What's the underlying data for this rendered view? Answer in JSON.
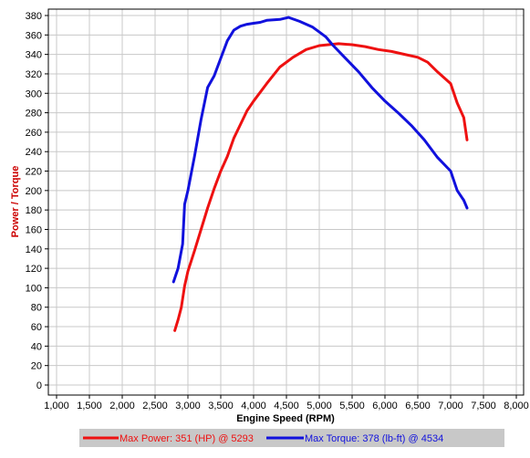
{
  "colors": {
    "power": "#ee1111",
    "torque": "#1111dd",
    "grid": "#c8c8c8",
    "axis": "#000000",
    "legend_bg": "#c8c8c8",
    "ylabel": "#cc0000"
  },
  "chart_data": {
    "type": "line",
    "title": "",
    "xlabel": "Engine Speed (RPM)",
    "ylabel": "Power / Torque",
    "xlim": [
      1000,
      8000
    ],
    "ylim": [
      0,
      380
    ],
    "x_ticks": [
      1000,
      1500,
      2000,
      2500,
      3000,
      3500,
      4000,
      4500,
      5000,
      5500,
      6000,
      6500,
      7000,
      7500,
      8000
    ],
    "x_tick_labels": [
      "1,000",
      "1,500",
      "2,000",
      "2,500",
      "3,000",
      "3,500",
      "4,000",
      "4,500",
      "5,000",
      "5,500",
      "6,000",
      "6,500",
      "7,000",
      "7,500",
      "8,000"
    ],
    "y_ticks": [
      0,
      20,
      40,
      60,
      80,
      100,
      120,
      140,
      160,
      180,
      200,
      220,
      240,
      260,
      280,
      300,
      320,
      340,
      360,
      380
    ],
    "grid": true,
    "legend_position": "bottom",
    "series": [
      {
        "name": "Max Power: 351 (HP) @ 5293",
        "color_key": "power",
        "x": [
          2800,
          2850,
          2900,
          2950,
          3000,
          3100,
          3200,
          3300,
          3400,
          3500,
          3600,
          3700,
          3800,
          3900,
          4000,
          4200,
          4400,
          4600,
          4800,
          5000,
          5293,
          5500,
          5700,
          5900,
          6100,
          6300,
          6500,
          6650,
          6800,
          7000,
          7100,
          7200,
          7250
        ],
        "y": [
          56,
          67,
          80,
          102,
          117,
          138,
          160,
          182,
          202,
          220,
          235,
          254,
          268,
          282,
          292,
          310,
          327,
          337,
          345,
          349,
          351,
          350,
          348,
          345,
          343,
          340,
          337,
          332,
          322,
          310,
          290,
          275,
          252
        ]
      },
      {
        "name": "Max Torque: 378 (lb-ft) @ 4534",
        "color_key": "torque",
        "x": [
          2780,
          2850,
          2920,
          2950,
          3000,
          3100,
          3200,
          3300,
          3400,
          3500,
          3600,
          3700,
          3800,
          3900,
          4000,
          4100,
          4200,
          4400,
          4534,
          4700,
          4900,
          5000,
          5100,
          5200,
          5400,
          5600,
          5800,
          6000,
          6200,
          6400,
          6600,
          6800,
          7000,
          7050,
          7100,
          7200,
          7250
        ],
        "y": [
          106,
          120,
          145,
          186,
          200,
          235,
          273,
          306,
          318,
          336,
          354,
          365,
          369,
          371,
          372,
          373,
          375,
          376,
          378,
          374,
          368,
          363,
          358,
          350,
          336,
          322,
          306,
          292,
          280,
          267,
          252,
          234,
          220,
          210,
          200,
          190,
          182
        ]
      }
    ]
  }
}
